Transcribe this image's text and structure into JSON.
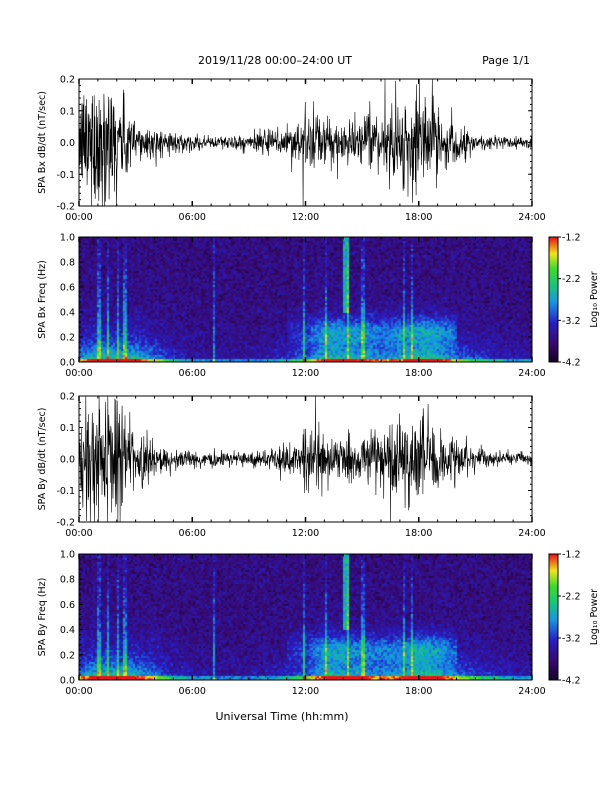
{
  "header": {
    "title": "2019/11/28  00:00–24:00 UT",
    "page": "Page 1/1"
  },
  "footer": {
    "xlabel": "Universal Time (hh:mm)"
  },
  "colors": {
    "trace": "#000000",
    "axis": "#000000"
  },
  "chart_data": [
    {
      "type": "line",
      "ylabel": "SPA Bx dB/dt (nT/sec)",
      "xlabel": "",
      "xlim": [
        0,
        24
      ],
      "x_ticks": [
        "00:00",
        "06:00",
        "12:00",
        "18:00",
        "24:00"
      ],
      "ylim": [
        -0.2,
        0.2
      ],
      "y_ticks": [
        "0.2",
        "0.1",
        "0.0",
        "-0.1",
        "-0.2"
      ],
      "series": [
        {
          "x": [
            0,
            0.5,
            1,
            1.5,
            2,
            3,
            4,
            5,
            6,
            7,
            8,
            9,
            10,
            11,
            12,
            13,
            14,
            15,
            16,
            17,
            18,
            19,
            20,
            21,
            22,
            23,
            24
          ],
          "amplitude": [
            0.11,
            0.2,
            0.2,
            0.2,
            0.15,
            0.07,
            0.04,
            0.03,
            0.02,
            0.018,
            0.02,
            0.022,
            0.035,
            0.05,
            0.085,
            0.07,
            0.06,
            0.06,
            0.08,
            0.12,
            0.15,
            0.1,
            0.05,
            0.025,
            0.02,
            0.018,
            0.018
          ]
        }
      ]
    },
    {
      "type": "heatmap",
      "ylabel": "SPA Bx Freq (Hz)",
      "xlabel": "",
      "xlim": [
        0,
        24
      ],
      "x_ticks": [
        "00:00",
        "06:00",
        "12:00",
        "18:00",
        "24:00"
      ],
      "ylim": [
        0.0,
        1.0
      ],
      "y_ticks": [
        "1.0",
        "0.8",
        "0.6",
        "0.4",
        "0.2",
        "0.0"
      ],
      "colorbar": {
        "label": "Log₁₀ Power",
        "ticks": [
          "-1.2",
          "-2.2",
          "-3.2",
          "-4.2"
        ],
        "range": [
          -4.2,
          -1.2
        ]
      }
    },
    {
      "type": "line",
      "ylabel": "SPA By dB/dt (nT/sec)",
      "xlabel": "",
      "xlim": [
        0,
        24
      ],
      "x_ticks": [
        "00:00",
        "06:00",
        "12:00",
        "18:00",
        "24:00"
      ],
      "ylim": [
        -0.2,
        0.2
      ],
      "y_ticks": [
        "0.2",
        "0.1",
        "0.0",
        "-0.1",
        "-0.2"
      ],
      "series": [
        {
          "x": [
            0,
            0.5,
            1,
            1.5,
            2,
            3,
            4,
            5,
            6,
            7,
            8,
            9,
            10,
            11,
            12,
            13,
            14,
            15,
            16,
            17,
            18,
            19,
            20,
            21,
            22,
            23,
            24
          ],
          "amplitude": [
            0.12,
            0.2,
            0.2,
            0.2,
            0.18,
            0.08,
            0.05,
            0.03,
            0.022,
            0.02,
            0.02,
            0.022,
            0.03,
            0.05,
            0.09,
            0.075,
            0.06,
            0.06,
            0.09,
            0.12,
            0.14,
            0.1,
            0.06,
            0.03,
            0.022,
            0.018,
            0.016
          ]
        }
      ]
    },
    {
      "type": "heatmap",
      "ylabel": "SPA By Freq (Hz)",
      "xlabel": "",
      "xlim": [
        0,
        24
      ],
      "x_ticks": [
        "00:00",
        "06:00",
        "12:00",
        "18:00",
        "24:00"
      ],
      "ylim": [
        0.0,
        1.0
      ],
      "y_ticks": [
        "1.0",
        "0.8",
        "0.6",
        "0.4",
        "0.2",
        "0.0"
      ],
      "colorbar": {
        "label": "Log₁₀ Power",
        "ticks": [
          "-1.2",
          "-2.2",
          "-3.2",
          "-4.2"
        ],
        "range": [
          -4.2,
          -1.2
        ]
      }
    }
  ]
}
